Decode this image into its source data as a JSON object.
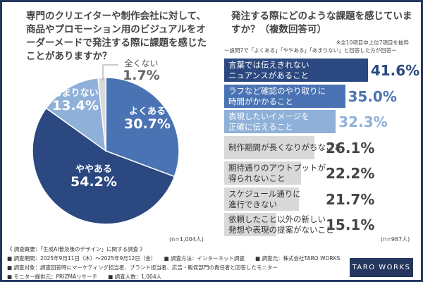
{
  "colors": {
    "frame": "#26375f",
    "dark": "#2b4880",
    "medium": "#4a73b3",
    "light": "#8fb0d8",
    "gray": "#d9d9d9",
    "gray_text": "#444444"
  },
  "left": {
    "question": "専門のクリエイターや制作会社に対して、商品やプロモーション用のビジュアルをオーダーメードで発注する際に課題を感じたことがありますか？",
    "n": "(n=1,004人)"
  },
  "right": {
    "question": "発注する際にどのような課題を感じていますか？（複数回答可）",
    "note": "※全10項目中上位7項目を抜粋",
    "subnote": "ー設問7で「よくある」「ややある」「あまりない」と回答した方が回答ー",
    "n": "(n=987人)"
  },
  "chart_data": [
    {
      "type": "pie",
      "title": "専門のクリエイターや制作会社に対して、商品やプロモーション用のビジュアルをオーダーメードで発注する際に課題を感じたことがありますか？",
      "categories": [
        "よくある",
        "ややある",
        "あまりない",
        "全くない"
      ],
      "values": [
        30.7,
        54.2,
        13.4,
        1.7
      ],
      "labels": [
        "30.7%",
        "54.2%",
        "13.4%",
        "1.7%"
      ],
      "colors": [
        "#4a73b3",
        "#2b4880",
        "#8fb0d8",
        "#d9d9d9"
      ],
      "start": "12 o'clock, clockwise"
    },
    {
      "type": "bar",
      "orientation": "horizontal",
      "title": "発注する際にどのような課題を感じていますか？（複数回答可）",
      "categories": [
        "言葉では伝えきれないニュアンスがあること",
        "ラフなど確認のやり取りに時間がかかること",
        "表現したいイメージを正確に伝えること",
        "制作期間が長くなりがちなこと",
        "期待通りのアウトプットが得られないこと",
        "スケジュール通りに進行できない",
        "依頼したこと以外の新しい発想や表現の提案がないこと"
      ],
      "label_lines": [
        [
          "言葉では伝えきれない",
          "ニュアンスがあること"
        ],
        [
          "ラフなど確認のやり取りに",
          "時間がかかること"
        ],
        [
          "表現したいイメージを",
          "正確に伝えること"
        ],
        [
          "制作期間が長くなりがちなこと"
        ],
        [
          "期待通りのアウトプットが",
          "得られないこと"
        ],
        [
          "スケジュール通りに",
          "進行できない"
        ],
        [
          "依頼したこと以外の新しい",
          "発想や表現の提案がないこと"
        ]
      ],
      "values": [
        41.6,
        35.0,
        32.3,
        26.1,
        22.2,
        21.7,
        15.1
      ],
      "value_labels": [
        "41.6%",
        "35.0%",
        "32.3%",
        "26.1%",
        "22.2%",
        "21.7%",
        "15.1%"
      ],
      "bar_colors": [
        "#2b4880",
        "#4a73b3",
        "#8fb0d8",
        "#d9d9d9",
        "#d9d9d9",
        "#d9d9d9",
        "#d9d9d9"
      ],
      "value_colors": [
        "#2b4880",
        "#4a73b3",
        "#8fb0d8",
        "#444444",
        "#444444",
        "#444444",
        "#444444"
      ],
      "label_colors": [
        "#ffffff",
        "#ffffff",
        "#ffffff",
        "#333333",
        "#333333",
        "#333333",
        "#333333"
      ]
    }
  ],
  "footer": {
    "title": "《 調査概要：「生成AI普及後のデザイン」に関する調査 》",
    "line1": "■ 調査期間：2025年9月11日（木）〜2025年9月12日（金）　　■ 調査方法：インターネット調査　　■ 調査元：株式会社TARO WORKS",
    "line2": "■ 調査対象：調査回答時にマーケティング担当者、ブランド担当者、広告・販促部門の責任者と回答したモニター",
    "line3": "■ モニター提供元：PRIZMAリサーチ　　■ 調査人数：1,004人",
    "logo": "TARO WORKS"
  }
}
